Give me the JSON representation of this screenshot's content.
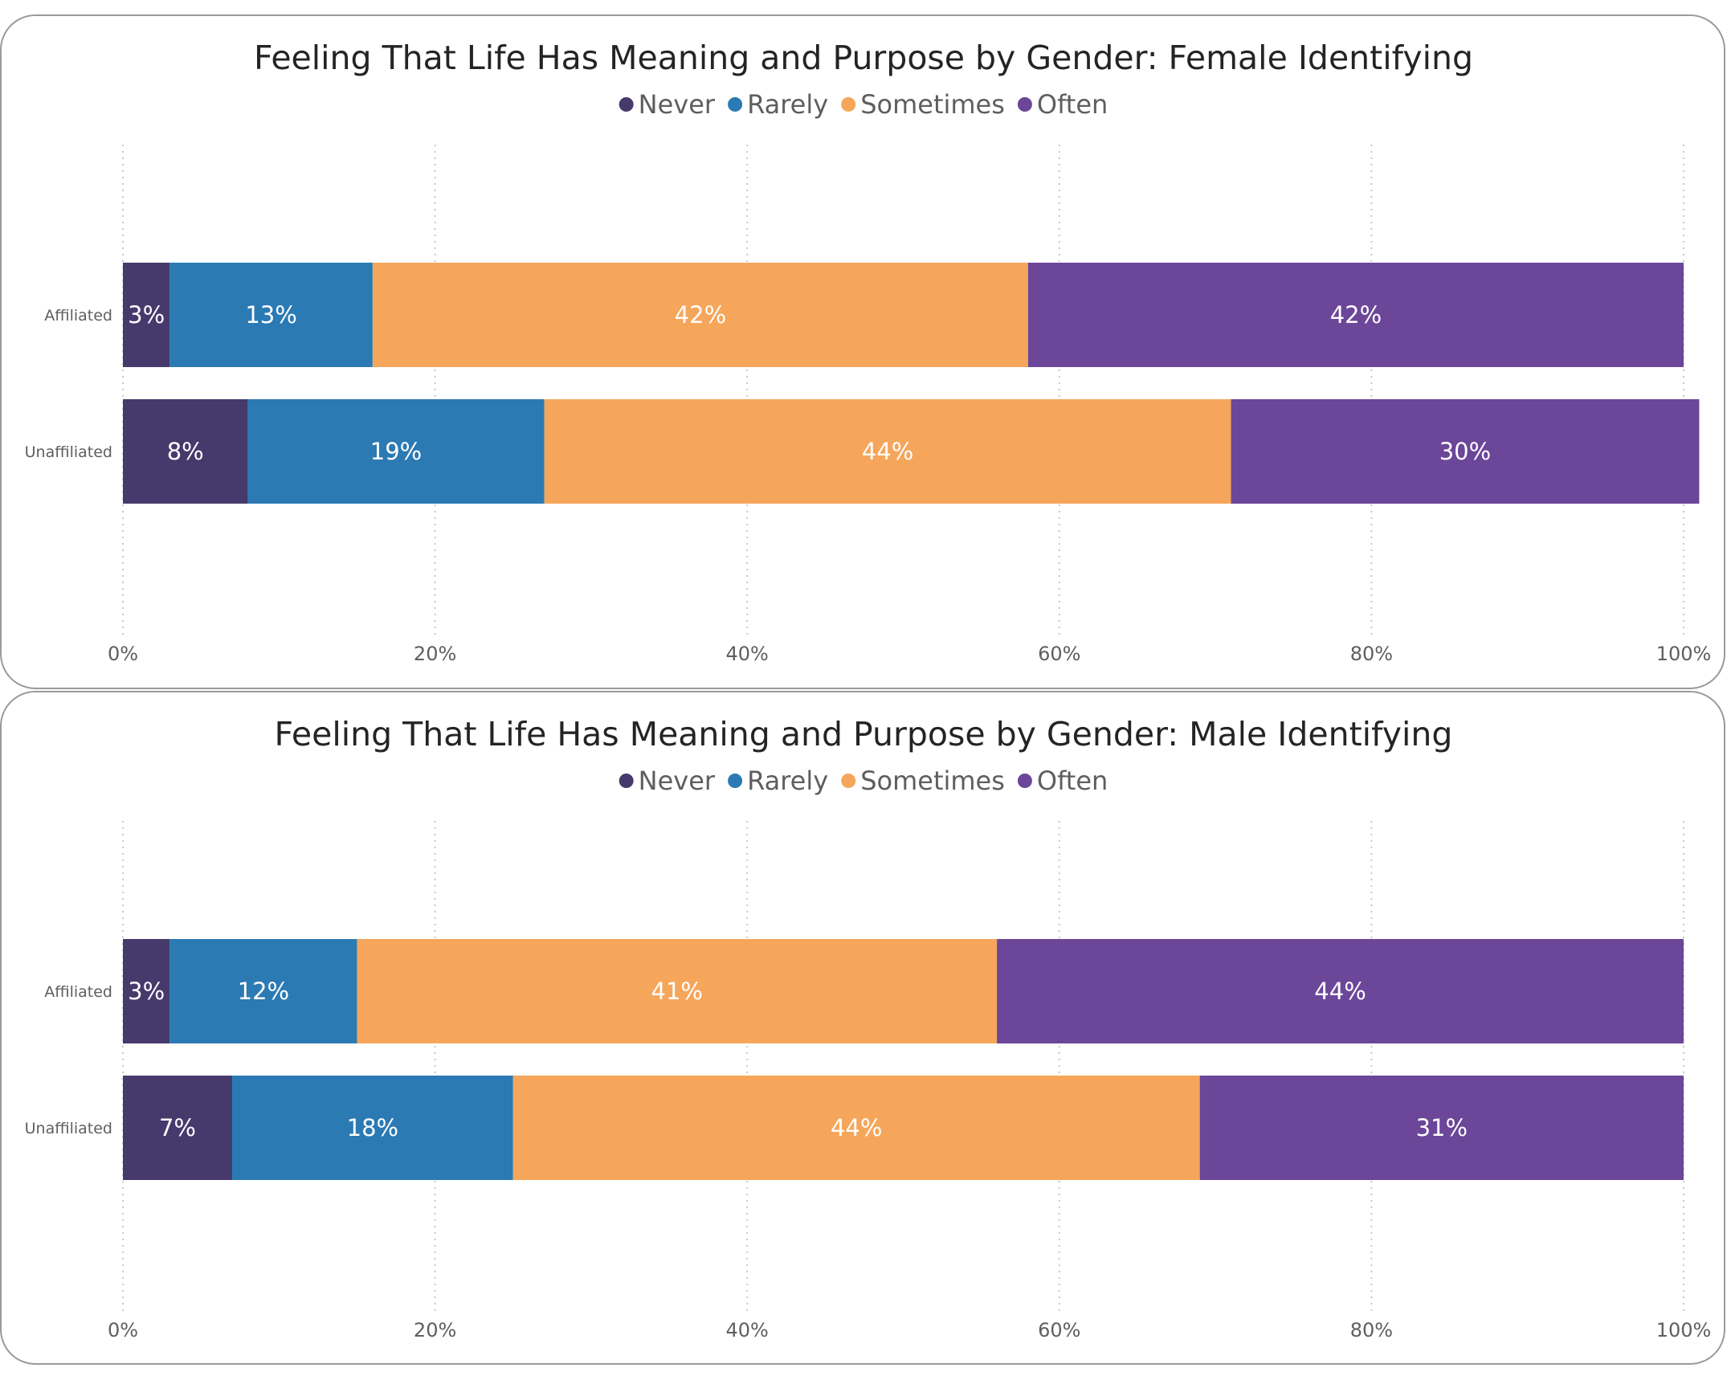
{
  "chart_data": [
    {
      "type": "bar",
      "orientation": "horizontal",
      "stacked": "100%",
      "title": "Feeling That Life Has Meaning and Purpose by Gender: Female Identifying",
      "categories": [
        "Affiliated",
        "Unaffiliated"
      ],
      "series": [
        {
          "name": "Never",
          "color": "#463a6c",
          "values": [
            3,
            8
          ],
          "labels": [
            "3%",
            "8%"
          ]
        },
        {
          "name": "Rarely",
          "color": "#2b7ab4",
          "values": [
            13,
            19
          ],
          "labels": [
            "13%",
            "19%"
          ]
        },
        {
          "name": "Sometimes",
          "color": "#f5a65b",
          "values": [
            42,
            44
          ],
          "labels": [
            "42%",
            "44%"
          ]
        },
        {
          "name": "Often",
          "color": "#6b4699",
          "values": [
            42,
            30
          ],
          "labels": [
            "42%",
            "30%"
          ]
        }
      ],
      "xlim": [
        0,
        100
      ],
      "xticks": [
        "0%",
        "20%",
        "40%",
        "60%",
        "80%",
        "100%"
      ],
      "xlabel": "",
      "ylabel": "",
      "legend_position": "top-center",
      "grid": "vertical-dotted"
    },
    {
      "type": "bar",
      "orientation": "horizontal",
      "stacked": "100%",
      "title": "Feeling That Life Has Meaning and Purpose by Gender: Male Identifying",
      "categories": [
        "Affiliated",
        "Unaffiliated"
      ],
      "series": [
        {
          "name": "Never",
          "color": "#463a6c",
          "values": [
            3,
            7
          ],
          "labels": [
            "3%",
            "7%"
          ]
        },
        {
          "name": "Rarely",
          "color": "#2b7ab4",
          "values": [
            12,
            18
          ],
          "labels": [
            "12%",
            "18%"
          ]
        },
        {
          "name": "Sometimes",
          "color": "#f5a65b",
          "values": [
            41,
            44
          ],
          "labels": [
            "41%",
            "44%"
          ]
        },
        {
          "name": "Often",
          "color": "#6b4699",
          "values": [
            44,
            31
          ],
          "labels": [
            "44%",
            "31%"
          ]
        }
      ],
      "xlim": [
        0,
        100
      ],
      "xticks": [
        "0%",
        "20%",
        "40%",
        "60%",
        "80%",
        "100%"
      ],
      "xlabel": "",
      "ylabel": "",
      "legend_position": "top-center",
      "grid": "vertical-dotted"
    }
  ]
}
